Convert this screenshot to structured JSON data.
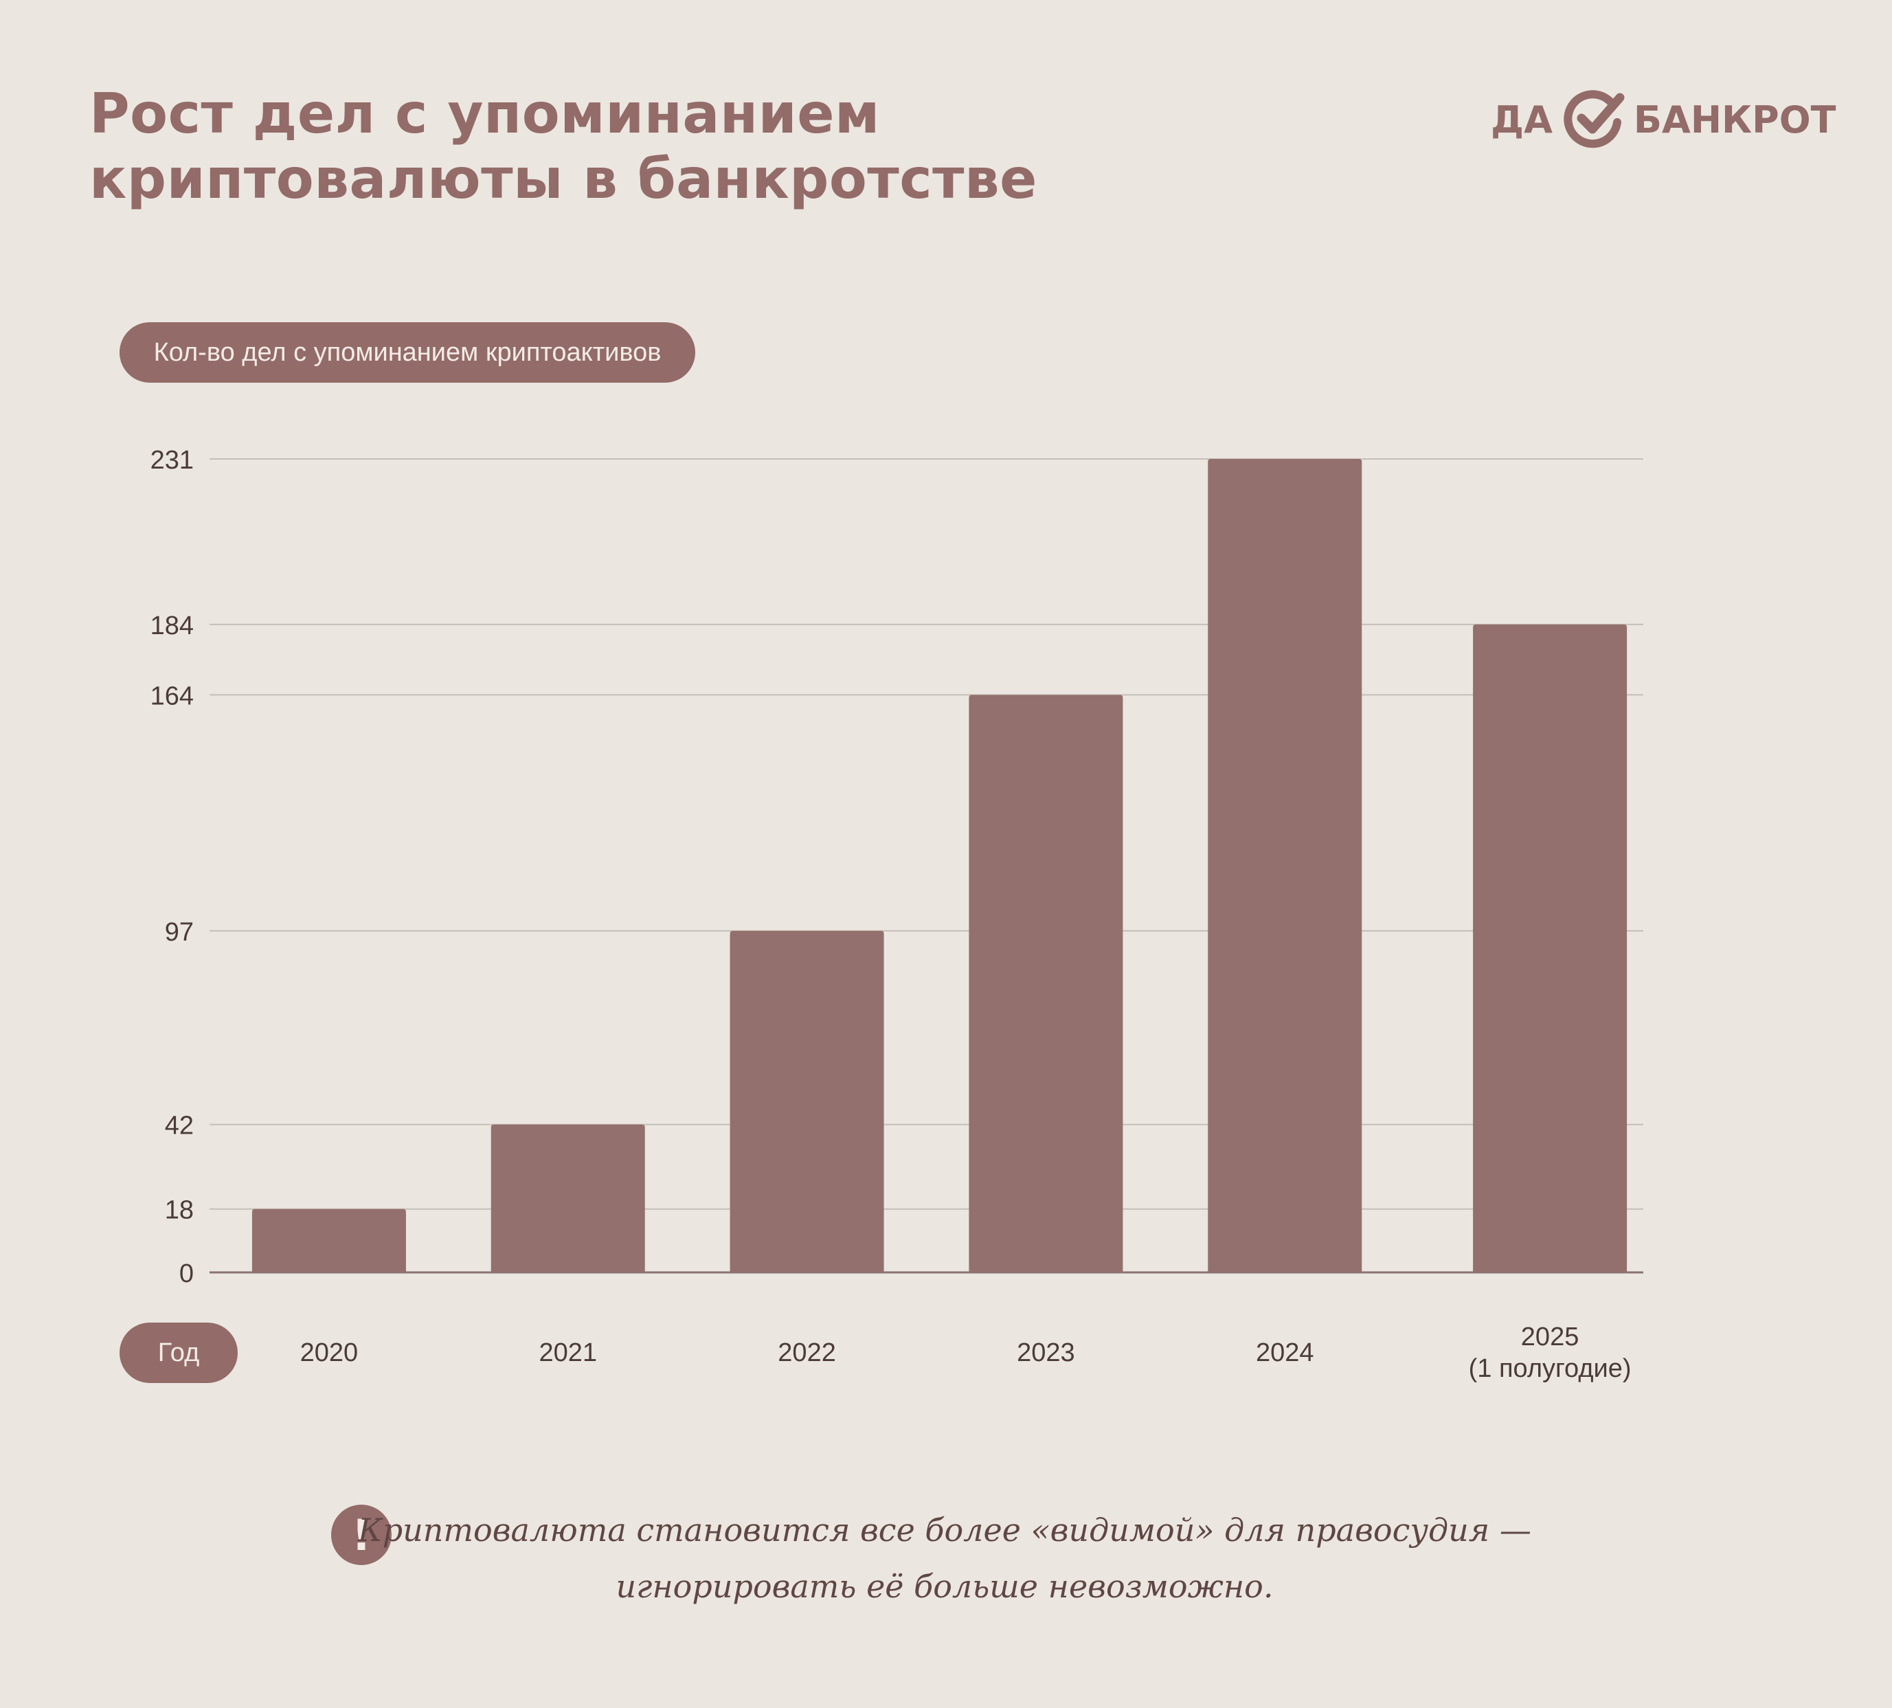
{
  "header": {
    "title_line1": "Рост дел с упоминанием",
    "title_line2": "криптовалюты в банкротстве"
  },
  "logo": {
    "left_text": "ДА",
    "right_text": "БАНКРОТ",
    "icon": "check-circle-icon"
  },
  "colors": {
    "background": "#ebe6e0",
    "accent": "#936b68",
    "bar": "#93706d",
    "grid": "#c6bfb9",
    "axis_text": "#4a3b39"
  },
  "chart_data": {
    "type": "bar",
    "categories": [
      "2020",
      "2021",
      "2022",
      "2023",
      "2024",
      "2025\n(1 полугодие)"
    ],
    "values": [
      18,
      42,
      97,
      164,
      231,
      184
    ],
    "yticks": [
      0,
      18,
      42,
      97,
      164,
      184,
      231
    ],
    "ylim": [
      0,
      231
    ],
    "ylabel": "Кол-во дел с упоминанием криптоактивов",
    "xlabel": "Год",
    "grid": true
  },
  "footnote": {
    "icon": "exclamation-icon",
    "icon_text": "!",
    "line1": "Криптовалюта становится все более «видимой» для правосудия —",
    "line2": "игнорировать её больше невозможно."
  }
}
